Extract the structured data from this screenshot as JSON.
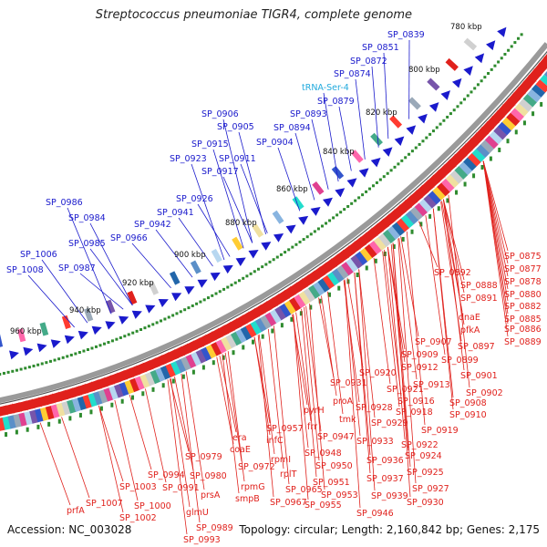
{
  "header": {
    "title": "Streptococcus pneumoniae TIGR4, complete genome"
  },
  "footer": {
    "accession": "Accession: NC_003028",
    "summary": "Topology: circular; Length: 2,160,842 bp; Genes: 2,175"
  },
  "colors": {
    "blue_labels": "#1a1acc",
    "red_labels": "#e0211c",
    "trna_label": "#22aadd",
    "tick_dots": "#2e8b2e",
    "backbone": "#8a8a8a"
  },
  "ruler": {
    "ticks": [
      "780 kbp",
      "800 kbp",
      "820 kbp",
      "840 kbp",
      "860 kbp",
      "880 kbp",
      "900 kbp",
      "920 kbp",
      "940 kbp",
      "960 kbp"
    ]
  },
  "outer_labels": [
    {
      "text": "SP_0839"
    },
    {
      "text": "SP_0851"
    },
    {
      "text": "SP_0872"
    },
    {
      "text": "SP_0874"
    },
    {
      "text": "tRNA-Ser-4"
    },
    {
      "text": "SP_0879"
    },
    {
      "text": "SP_0893"
    },
    {
      "text": "SP_0894"
    },
    {
      "text": "SP_0906"
    },
    {
      "text": "SP_0905"
    },
    {
      "text": "SP_0904"
    },
    {
      "text": "SP_0915"
    },
    {
      "text": "SP_0911"
    },
    {
      "text": "SP_0923"
    },
    {
      "text": "SP_0917"
    },
    {
      "text": "SP_0926"
    },
    {
      "text": "SP_0986"
    },
    {
      "text": "SP_0941"
    },
    {
      "text": "SP_0984"
    },
    {
      "text": "SP_0942"
    },
    {
      "text": "SP_0966"
    },
    {
      "text": "SP_0985"
    },
    {
      "text": "SP_1006"
    },
    {
      "text": "SP_1008"
    },
    {
      "text": "SP_0987"
    }
  ],
  "inner_labels": [
    {
      "text": "SP_0875"
    },
    {
      "text": "SP_0877"
    },
    {
      "text": "SP_0878"
    },
    {
      "text": "SP_0892"
    },
    {
      "text": "SP_0880"
    },
    {
      "text": "SP_0888"
    },
    {
      "text": "SP_0882"
    },
    {
      "text": "SP_0891"
    },
    {
      "text": "SP_0885"
    },
    {
      "text": "SP_0886"
    },
    {
      "text": "SP_0889"
    },
    {
      "text": "dnaE"
    },
    {
      "text": "pfkA"
    },
    {
      "text": "SP_0907"
    },
    {
      "text": "SP_0897"
    },
    {
      "text": "SP_0909"
    },
    {
      "text": "SP_0899"
    },
    {
      "text": "SP_0912"
    },
    {
      "text": "SP_0901"
    },
    {
      "text": "SP_0920"
    },
    {
      "text": "SP_0913"
    },
    {
      "text": "SP_0921"
    },
    {
      "text": "SP_0902"
    },
    {
      "text": "SP_0931"
    },
    {
      "text": "SP_0916"
    },
    {
      "text": "SP_0908"
    },
    {
      "text": "proA"
    },
    {
      "text": "SP_0928"
    },
    {
      "text": "SP_0910"
    },
    {
      "text": "SP_0918"
    },
    {
      "text": "pyrH"
    },
    {
      "text": "tmk"
    },
    {
      "text": "SP_0929"
    },
    {
      "text": "SP_0919"
    },
    {
      "text": "SP_0957"
    },
    {
      "text": "frr"
    },
    {
      "text": "SP_0933"
    },
    {
      "text": "SP_0922"
    },
    {
      "text": "era"
    },
    {
      "text": "infC"
    },
    {
      "text": "SP_0947"
    },
    {
      "text": "coaE"
    },
    {
      "text": "SP_0948"
    },
    {
      "text": "SP_0936"
    },
    {
      "text": "SP_0924"
    },
    {
      "text": "SP_0979"
    },
    {
      "text": "rpmI"
    },
    {
      "text": "SP_0950"
    },
    {
      "text": "SP_0972"
    },
    {
      "text": "rplT"
    },
    {
      "text": "SP_0937"
    },
    {
      "text": "SP_0925"
    },
    {
      "text": "SP_0994"
    },
    {
      "text": "SP_0980"
    },
    {
      "text": "SP_0951"
    },
    {
      "text": "SP_1003"
    },
    {
      "text": "SP_0991"
    },
    {
      "text": "rpmG"
    },
    {
      "text": "SP_0965"
    },
    {
      "text": "SP_0939"
    },
    {
      "text": "SP_0927"
    },
    {
      "text": "prsA"
    },
    {
      "text": "smpB"
    },
    {
      "text": "SP_0967"
    },
    {
      "text": "SP_0953"
    },
    {
      "text": "SP_1007"
    },
    {
      "text": "SP_1000"
    },
    {
      "text": "SP_0955"
    },
    {
      "text": "SP_0930"
    },
    {
      "text": "glmU"
    },
    {
      "text": "prfA"
    },
    {
      "text": "SP_1002"
    },
    {
      "text": "SP_0946"
    },
    {
      "text": "SP_0989"
    },
    {
      "text": "SP_0993"
    }
  ]
}
